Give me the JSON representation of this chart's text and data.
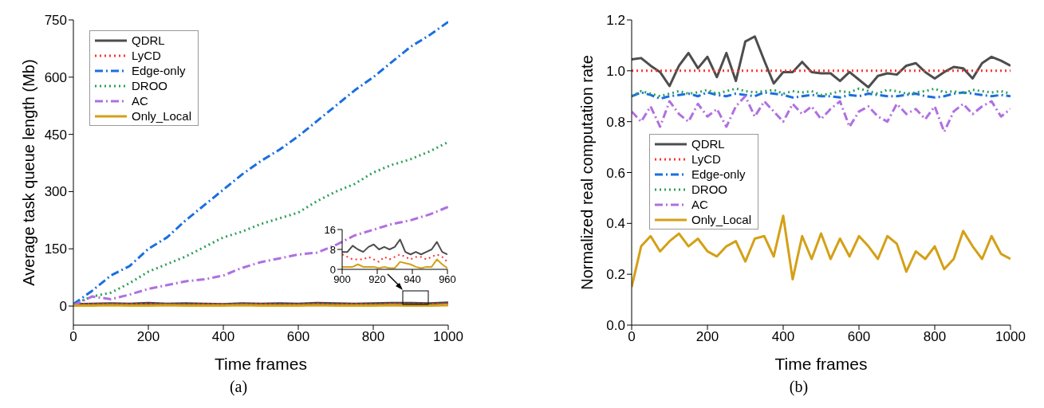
{
  "chart_data": [
    {
      "type": "line",
      "title": "(a)",
      "xlabel": "Time frames",
      "ylabel": "Average task queue length (Mb)",
      "legend": "top left",
      "xlim": [
        0,
        1000
      ],
      "xticks": [
        0,
        200,
        400,
        600,
        800,
        1000
      ],
      "ylim": [
        -50,
        750
      ],
      "yticks": [
        0,
        150,
        300,
        450,
        600,
        750
      ],
      "x": [
        0,
        50,
        100,
        150,
        200,
        250,
        300,
        350,
        400,
        450,
        500,
        550,
        600,
        650,
        700,
        750,
        800,
        850,
        900,
        950,
        1000
      ],
      "series": [
        {
          "name": "QDRL",
          "color": "#4d4d4d",
          "line_style": "solid",
          "values": [
            5,
            6,
            7,
            6,
            8,
            6,
            7,
            6,
            5,
            7,
            6,
            7,
            6,
            8,
            7,
            6,
            7,
            8,
            8,
            7,
            9
          ]
        },
        {
          "name": "LyCD",
          "color": "#ff3333",
          "line_style": "dotted",
          "values": [
            4,
            5,
            4,
            5,
            5,
            4,
            4,
            5,
            4,
            4,
            5,
            4,
            4,
            5,
            4,
            5,
            4,
            5,
            4,
            5,
            5
          ]
        },
        {
          "name": "Edge-only",
          "color": "#1a6fe0",
          "line_style": "dashed",
          "values": [
            5,
            40,
            80,
            105,
            150,
            180,
            225,
            265,
            305,
            345,
            380,
            410,
            445,
            485,
            525,
            565,
            600,
            640,
            680,
            710,
            745
          ]
        },
        {
          "name": "DROO",
          "color": "#2ca05a",
          "line_style": "dotted",
          "values": [
            5,
            25,
            35,
            60,
            90,
            110,
            130,
            155,
            180,
            195,
            215,
            230,
            245,
            275,
            300,
            320,
            350,
            370,
            385,
            405,
            430
          ]
        },
        {
          "name": "AC",
          "color": "#b070e0",
          "line_style": "dashed",
          "values": [
            2,
            25,
            18,
            30,
            45,
            55,
            65,
            70,
            80,
            100,
            115,
            125,
            135,
            140,
            160,
            185,
            200,
            215,
            225,
            240,
            260
          ]
        },
        {
          "name": "Only_Local",
          "color": "#d4a017",
          "line_style": "solid",
          "values": [
            1,
            1,
            2,
            1,
            1,
            2,
            1,
            1,
            1,
            2,
            1,
            1,
            1,
            2,
            1,
            1,
            1,
            2,
            1,
            1,
            2
          ]
        }
      ]
    },
    {
      "type": "line",
      "xlim": [
        900,
        960
      ],
      "xticks": [
        900,
        920,
        940,
        960
      ],
      "ylim": [
        0,
        16
      ],
      "yticks": [
        0,
        8,
        16
      ],
      "x": [
        900,
        903,
        906,
        909,
        912,
        915,
        918,
        921,
        924,
        927,
        930,
        933,
        936,
        939,
        942,
        945,
        948,
        951,
        954,
        957,
        960
      ],
      "series": [
        {
          "color": "#4d4d4d",
          "line_style": "solid",
          "values": [
            7,
            7,
            9.5,
            8,
            7,
            9,
            10,
            8,
            9,
            8,
            9,
            12,
            7,
            6,
            7,
            6,
            7,
            8,
            11,
            7,
            6
          ]
        },
        {
          "color": "#ff3333",
          "line_style": "dotted",
          "values": [
            6,
            5,
            4,
            4,
            4,
            5,
            4,
            3,
            5,
            4,
            5,
            6,
            5,
            4,
            5,
            5,
            4,
            5,
            6,
            5,
            3
          ]
        },
        {
          "color": "#d4a017",
          "line_style": "solid",
          "values": [
            1,
            1,
            1,
            2,
            1,
            1,
            1,
            0.5,
            1,
            0.5,
            0.5,
            3,
            2.5,
            2,
            1,
            0.5,
            1,
            1,
            4,
            2,
            0.5
          ]
        }
      ]
    },
    {
      "type": "line",
      "title": "(b)",
      "xlabel": "Time frames",
      "ylabel": "Normalized real computation rate",
      "legend": "left",
      "xlim": [
        0,
        1000
      ],
      "xticks": [
        0,
        200,
        400,
        600,
        800,
        1000
      ],
      "ylim": [
        0,
        1.2
      ],
      "yticks": [
        {
          "value": 0,
          "label": "0.0"
        },
        {
          "value": 0.2,
          "label": "0.2"
        },
        {
          "value": 0.4,
          "label": "0.4"
        },
        {
          "value": 0.6,
          "label": "0.6"
        },
        {
          "value": 0.8,
          "label": "0.8"
        },
        {
          "value": 1,
          "label": "1.0"
        },
        {
          "value": 1.2,
          "label": "1.2"
        }
      ],
      "x": [
        0,
        25,
        50,
        75,
        100,
        125,
        150,
        175,
        200,
        225,
        250,
        275,
        300,
        325,
        350,
        375,
        400,
        425,
        450,
        475,
        500,
        525,
        550,
        575,
        600,
        625,
        650,
        675,
        700,
        725,
        750,
        775,
        800,
        825,
        850,
        875,
        900,
        925,
        950,
        975,
        1000
      ],
      "series": [
        {
          "name": "QDRL",
          "color": "#4d4d4d",
          "line_style": "solid",
          "values": [
            1.045,
            1.05,
            1.02,
            0.995,
            0.94,
            1.02,
            1.07,
            1.01,
            1.055,
            0.975,
            1.07,
            0.96,
            1.115,
            1.135,
            1.04,
            0.95,
            0.995,
            0.995,
            1.035,
            0.995,
            0.99,
            0.99,
            0.96,
            0.995,
            0.965,
            0.935,
            0.98,
            0.99,
            0.985,
            1.02,
            1.03,
            0.995,
            0.97,
            0.995,
            1.015,
            1.01,
            0.97,
            1.03,
            1.055,
            1.04,
            1.02
          ]
        },
        {
          "name": "LyCD",
          "color": "#ff3333",
          "line_style": "dotted",
          "values": [
            1,
            1,
            1,
            1,
            1,
            1,
            1,
            1,
            1,
            1,
            1,
            1,
            1,
            1,
            1,
            1,
            1,
            1,
            1,
            1,
            1,
            1,
            1,
            1,
            1,
            1,
            1,
            1,
            1,
            1,
            1,
            1,
            1,
            1,
            1,
            1,
            1,
            1,
            1,
            1,
            1
          ]
        },
        {
          "name": "Edge-only",
          "color": "#1a6fe0",
          "line_style": "dashed",
          "values": [
            0.9,
            0.915,
            0.905,
            0.89,
            0.9,
            0.905,
            0.91,
            0.9,
            0.915,
            0.905,
            0.9,
            0.91,
            0.905,
            0.9,
            0.915,
            0.91,
            0.905,
            0.895,
            0.9,
            0.905,
            0.9,
            0.9,
            0.895,
            0.905,
            0.9,
            0.91,
            0.905,
            0.9,
            0.9,
            0.905,
            0.91,
            0.9,
            0.895,
            0.9,
            0.91,
            0.915,
            0.91,
            0.905,
            0.9,
            0.905,
            0.9
          ]
        },
        {
          "name": "DROO",
          "color": "#2ca05a",
          "line_style": "dotted",
          "values": [
            0.9,
            0.92,
            0.91,
            0.9,
            0.91,
            0.92,
            0.91,
            0.915,
            0.925,
            0.91,
            0.92,
            0.93,
            0.92,
            0.915,
            0.92,
            0.925,
            0.91,
            0.92,
            0.915,
            0.92,
            0.905,
            0.91,
            0.92,
            0.915,
            0.93,
            0.92,
            0.91,
            0.925,
            0.92,
            0.91,
            0.915,
            0.92,
            0.93,
            0.915,
            0.92,
            0.91,
            0.925,
            0.92,
            0.915,
            0.92,
            0.91
          ]
        },
        {
          "name": "AC",
          "color": "#b070e0",
          "line_style": "dashed",
          "values": [
            0.84,
            0.8,
            0.86,
            0.78,
            0.88,
            0.83,
            0.8,
            0.87,
            0.82,
            0.85,
            0.78,
            0.86,
            0.9,
            0.82,
            0.88,
            0.84,
            0.8,
            0.87,
            0.83,
            0.86,
            0.81,
            0.85,
            0.88,
            0.78,
            0.84,
            0.86,
            0.82,
            0.8,
            0.87,
            0.83,
            0.85,
            0.81,
            0.86,
            0.76,
            0.84,
            0.87,
            0.83,
            0.86,
            0.88,
            0.82,
            0.85
          ]
        },
        {
          "name": "Only_Local",
          "color": "#d4a017",
          "line_style": "solid",
          "values": [
            0.15,
            0.31,
            0.35,
            0.29,
            0.33,
            0.36,
            0.31,
            0.34,
            0.29,
            0.27,
            0.31,
            0.33,
            0.25,
            0.34,
            0.35,
            0.27,
            0.43,
            0.18,
            0.35,
            0.26,
            0.36,
            0.26,
            0.34,
            0.27,
            0.35,
            0.31,
            0.26,
            0.35,
            0.32,
            0.21,
            0.29,
            0.26,
            0.31,
            0.22,
            0.26,
            0.37,
            0.31,
            0.26,
            0.35,
            0.28,
            0.26
          ]
        }
      ]
    }
  ]
}
